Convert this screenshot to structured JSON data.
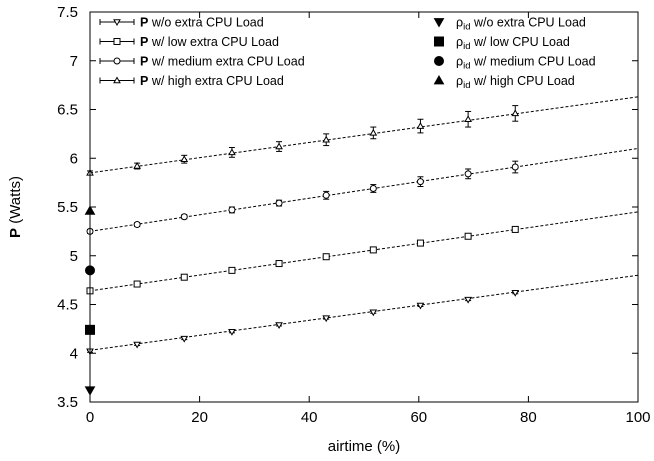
{
  "chart_data": {
    "type": "scatter",
    "xlabel": "airtime (%)",
    "ylabel": {
      "bold": "P",
      "rest": " (Watts)"
    },
    "xlim": [
      0,
      100
    ],
    "ylim": [
      3.5,
      7.5
    ],
    "xticks": [
      0,
      20,
      40,
      60,
      80,
      100
    ],
    "yticks": [
      3.5,
      4,
      4.5,
      5,
      5.5,
      6,
      6.5,
      7,
      7.5
    ],
    "ytick_labels": [
      "3.5",
      "4",
      "4.5",
      "5",
      "5.5",
      "6",
      "6.5",
      "7",
      "7.5"
    ],
    "grid": false,
    "legend_placement": "top",
    "series": [
      {
        "name": {
          "bold": "P",
          "rest": " w/o extra CPU Load"
        },
        "marker": "triangle-down-open",
        "x": [
          0,
          8.6,
          17.2,
          25.9,
          34.5,
          43.1,
          51.7,
          60.3,
          69,
          77.6
        ],
        "y": [
          4.02,
          4.09,
          4.15,
          4.22,
          4.29,
          4.36,
          4.42,
          4.49,
          4.55,
          4.62
        ],
        "err": [
          0.01,
          0.01,
          0.01,
          0.01,
          0.01,
          0.01,
          0.01,
          0.01,
          0.01,
          0.01
        ],
        "fit": {
          "intercept": 4.03,
          "slope": 0.0077
        }
      },
      {
        "name": {
          "bold": "P",
          "rest": " w/ low extra CPU Load"
        },
        "marker": "square-open",
        "x": [
          0,
          8.6,
          17.2,
          25.9,
          34.5,
          43.1,
          51.7,
          60.3,
          69,
          77.6
        ],
        "y": [
          4.64,
          4.71,
          4.78,
          4.85,
          4.92,
          4.99,
          5.06,
          5.13,
          5.2,
          5.27
        ],
        "err": [
          0.015,
          0.015,
          0.015,
          0.015,
          0.015,
          0.015,
          0.015,
          0.015,
          0.015,
          0.015
        ],
        "fit": {
          "intercept": 4.64,
          "slope": 0.0081
        }
      },
      {
        "name": {
          "bold": "P",
          "rest": " w/ medium extra CPU Load"
        },
        "marker": "circle-open",
        "x": [
          0,
          8.6,
          17.2,
          25.9,
          34.5,
          43.1,
          51.7,
          60.3,
          69,
          77.6
        ],
        "y": [
          5.25,
          5.32,
          5.4,
          5.47,
          5.54,
          5.62,
          5.69,
          5.76,
          5.84,
          5.91
        ],
        "err": [
          0.02,
          0.02,
          0.02,
          0.03,
          0.03,
          0.04,
          0.04,
          0.05,
          0.05,
          0.06
        ],
        "fit": {
          "intercept": 5.25,
          "slope": 0.0085
        }
      },
      {
        "name": {
          "bold": "P",
          "rest": " w/ high extra CPU Load"
        },
        "marker": "triangle-up-open",
        "x": [
          0,
          8.6,
          17.2,
          25.9,
          34.5,
          43.1,
          51.7,
          60.3,
          69,
          77.6
        ],
        "y": [
          5.85,
          5.92,
          5.99,
          6.06,
          6.12,
          6.19,
          6.26,
          6.33,
          6.4,
          6.46
        ],
        "err": [
          0.02,
          0.03,
          0.04,
          0.05,
          0.05,
          0.06,
          0.06,
          0.07,
          0.08,
          0.08
        ],
        "fit": {
          "intercept": 5.85,
          "slope": 0.0078
        }
      },
      {
        "name": {
          "sym": "ρ",
          "sub": "id",
          "rest": " w/o extra CPU Load"
        },
        "marker": "triangle-down-filled",
        "x": [
          0
        ],
        "y": [
          3.62
        ]
      },
      {
        "name": {
          "sym": "ρ",
          "sub": "id",
          "rest": " w/ low CPU Load"
        },
        "marker": "square-filled",
        "x": [
          0
        ],
        "y": [
          4.24
        ]
      },
      {
        "name": {
          "sym": "ρ",
          "sub": "id",
          "rest": " w/ medium CPU Load"
        },
        "marker": "circle-filled",
        "x": [
          0
        ],
        "y": [
          4.85
        ]
      },
      {
        "name": {
          "sym": "ρ",
          "sub": "id",
          "rest": " w/ high CPU Load"
        },
        "marker": "triangle-up-filled",
        "x": [
          0
        ],
        "y": [
          5.46
        ]
      }
    ]
  }
}
